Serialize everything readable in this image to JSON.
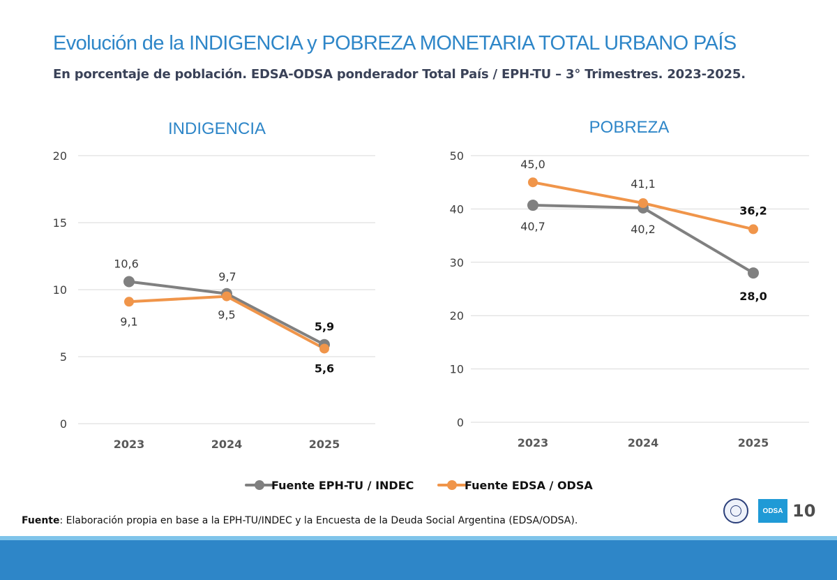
{
  "header": {
    "title": "Evolución de la INDIGENCIA y POBREZA MONETARIA TOTAL URBANO PAÍS",
    "subtitle": "En porcentaje de población. EDSA-ODSA ponderador Total País / EPH-TU – 3° Trimestres. 2023-2025."
  },
  "colors": {
    "indec": "#808080",
    "edsa": "#f0954a",
    "title": "#2e86c8",
    "footer": "#2e86c8"
  },
  "chart_data": [
    {
      "type": "line",
      "title": "INDIGENCIA",
      "categories": [
        "2023",
        "2024",
        "2025"
      ],
      "ylim": [
        0,
        20
      ],
      "yticks": [
        0,
        5,
        10,
        15,
        20
      ],
      "grid": true,
      "series": [
        {
          "name": "Fuente EPH-TU / INDEC",
          "values": [
            10.6,
            9.7,
            5.9
          ],
          "labels": [
            "10,6",
            "9,7",
            "5,9"
          ]
        },
        {
          "name": "Fuente EDSA / ODSA",
          "values": [
            9.1,
            9.5,
            5.6
          ],
          "labels": [
            "9,1",
            "9,5",
            "5,6"
          ]
        }
      ]
    },
    {
      "type": "line",
      "title": "POBREZA",
      "categories": [
        "2023",
        "2024",
        "2025"
      ],
      "ylim": [
        0,
        50
      ],
      "yticks": [
        0,
        10,
        20,
        30,
        40,
        50
      ],
      "grid": true,
      "series": [
        {
          "name": "Fuente EPH-TU / INDEC",
          "values": [
            40.7,
            40.2,
            28.0
          ],
          "labels": [
            "40,7",
            "40,2",
            "28,0"
          ]
        },
        {
          "name": "Fuente EDSA / ODSA",
          "values": [
            45.0,
            41.1,
            36.2
          ],
          "labels": [
            "45,0",
            "41,1",
            "36,2"
          ]
        }
      ]
    }
  ],
  "legend": {
    "position": "bottom",
    "items": [
      {
        "label": "Fuente EPH-TU / INDEC",
        "color": "#808080"
      },
      {
        "label": "Fuente EDSA / ODSA",
        "color": "#f0954a"
      }
    ]
  },
  "footnote": {
    "label": "Fuente",
    "text": ": Elaboración propia en base a la EPH-TU/INDEC y la Encuesta de la Deuda Social Argentina (EDSA/ODSA)."
  },
  "branding": {
    "logo_text": "ODSA",
    "page_number": "10"
  }
}
